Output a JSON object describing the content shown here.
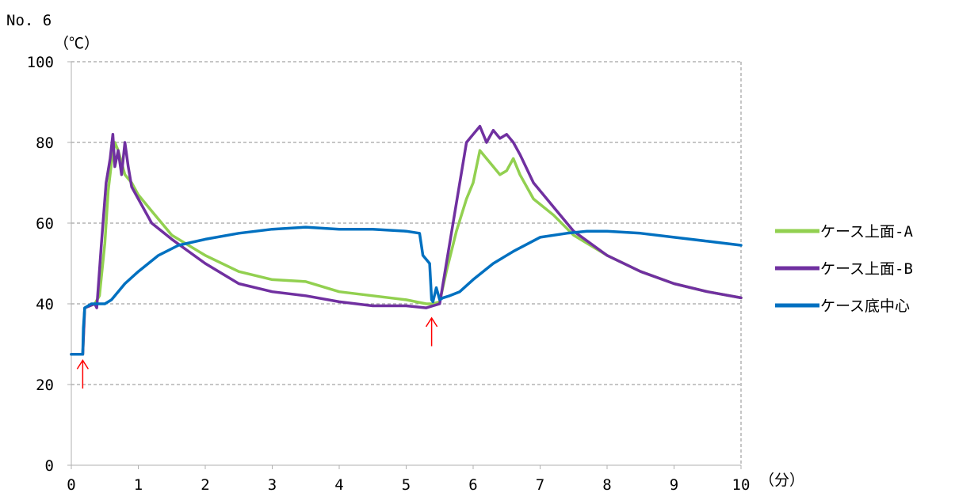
{
  "chart_data": {
    "type": "line",
    "title": "No. 6",
    "ylabel": "（℃）",
    "xlabel": "（分）",
    "xlim": [
      0,
      10
    ],
    "ylim": [
      0,
      100
    ],
    "xticks": [
      0,
      1,
      2,
      3,
      4,
      5,
      6,
      7,
      8,
      9,
      10
    ],
    "yticks": [
      0,
      20,
      40,
      60,
      80,
      100
    ],
    "grid": true,
    "legend_position": "right",
    "series": [
      {
        "name": "ケース上面-A",
        "color": "#92d050",
        "x": [
          0,
          0.17,
          0.2,
          0.35,
          0.42,
          0.5,
          0.55,
          0.6,
          0.65,
          0.7,
          0.75,
          0.8,
          0.9,
          1.0,
          1.2,
          1.5,
          2.0,
          2.5,
          3.0,
          3.5,
          4.0,
          4.5,
          5.0,
          5.3,
          5.4,
          5.5,
          5.6,
          5.75,
          5.9,
          6.0,
          6.1,
          6.2,
          6.3,
          6.4,
          6.5,
          6.6,
          6.7,
          6.9,
          7.2,
          7.5,
          8.0,
          8.5,
          9.0,
          9.5,
          10.0
        ],
        "y": [
          27.5,
          27.5,
          39,
          40,
          42,
          55,
          68,
          75,
          80,
          78,
          75,
          72,
          70,
          67,
          63,
          57,
          52,
          48,
          46,
          45.5,
          43,
          42,
          41,
          40,
          40,
          40.5,
          48,
          58,
          66,
          70,
          78,
          76,
          74,
          72,
          73,
          76,
          72,
          66,
          62,
          57,
          52,
          48,
          45,
          43,
          41.5
        ]
      },
      {
        "name": "ケース上面-B",
        "color": "#7030a0",
        "x": [
          0,
          0.17,
          0.2,
          0.35,
          0.38,
          0.45,
          0.52,
          0.58,
          0.62,
          0.65,
          0.7,
          0.75,
          0.8,
          0.85,
          0.9,
          1.0,
          1.2,
          1.5,
          2.0,
          2.5,
          3.0,
          3.5,
          4.0,
          4.5,
          5.0,
          5.3,
          5.4,
          5.5,
          5.6,
          5.75,
          5.9,
          6.0,
          6.1,
          6.2,
          6.3,
          6.4,
          6.5,
          6.6,
          6.7,
          6.9,
          7.2,
          7.5,
          8.0,
          8.5,
          9.0,
          9.5,
          10.0
        ],
        "y": [
          27.5,
          27.5,
          39,
          40,
          39,
          55,
          70,
          76,
          82,
          74,
          78,
          72,
          80,
          74,
          69,
          66,
          60,
          56,
          50,
          45,
          43,
          42,
          40.5,
          39.5,
          39.5,
          39,
          39.5,
          40,
          50,
          65,
          80,
          82,
          84,
          80,
          83,
          81,
          82,
          80,
          77,
          70,
          64,
          58,
          52,
          48,
          45,
          43,
          41.5
        ]
      },
      {
        "name": "ケース底中心",
        "color": "#0070c0",
        "x": [
          0,
          0.17,
          0.18,
          0.2,
          0.3,
          0.5,
          0.6,
          0.8,
          1.0,
          1.3,
          1.6,
          2.0,
          2.5,
          3.0,
          3.5,
          4.0,
          4.5,
          5.0,
          5.2,
          5.25,
          5.35,
          5.38,
          5.4,
          5.45,
          5.5,
          5.55,
          5.65,
          5.8,
          6.0,
          6.3,
          6.6,
          7.0,
          7.4,
          7.7,
          8.0,
          8.5,
          9.0,
          9.5,
          10.0
        ],
        "y": [
          27.5,
          27.5,
          34,
          39,
          40,
          40,
          41,
          45,
          48,
          52,
          54.5,
          56,
          57.5,
          58.5,
          59,
          58.5,
          58.5,
          58,
          57.5,
          52,
          50,
          41,
          40.5,
          44,
          41,
          41.5,
          42,
          43,
          46,
          50,
          53,
          56.5,
          57.5,
          58,
          58,
          57.5,
          56.5,
          55.5,
          54.5
        ]
      }
    ],
    "annotations": [
      {
        "type": "arrow",
        "x": 0.17,
        "y_from": 19,
        "y_to": 26,
        "color": "#ff0000"
      },
      {
        "type": "arrow",
        "x": 5.38,
        "y_from": 29.5,
        "y_to": 36.5,
        "color": "#ff0000"
      }
    ]
  }
}
